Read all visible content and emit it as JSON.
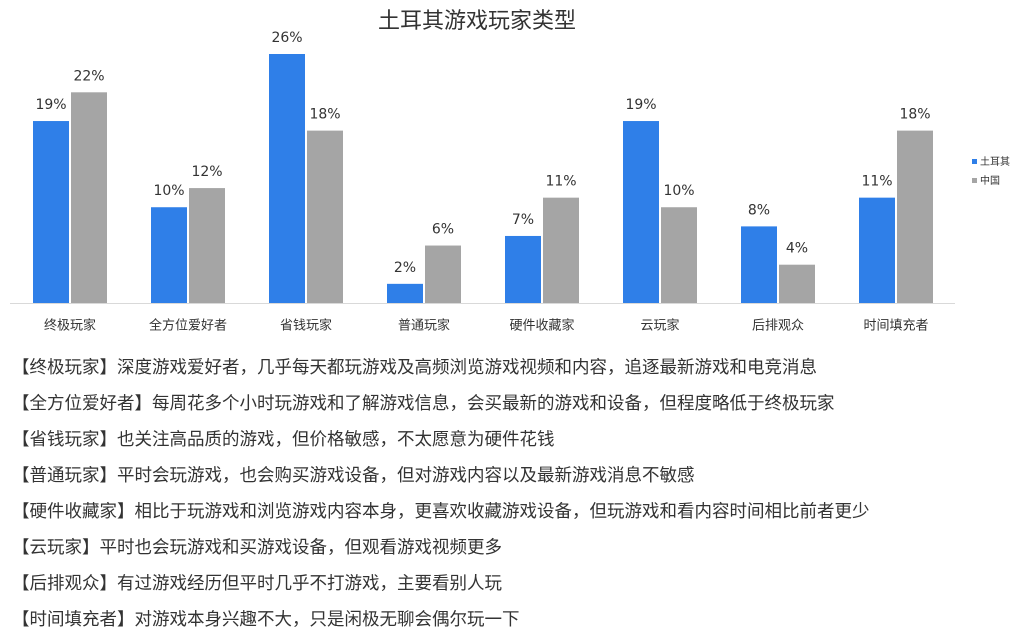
{
  "chart_data": {
    "type": "bar",
    "title": "土耳其游戏玩家类型",
    "categories": [
      "终极玩家",
      "全方位爱好者",
      "省钱玩家",
      "普通玩家",
      "硬件收藏家",
      "云玩家",
      "后排观众",
      "时间填充者"
    ],
    "series": [
      {
        "name": "土耳其",
        "color": "#2f7fe8",
        "values": [
          19,
          10,
          26,
          2,
          7,
          19,
          8,
          11
        ],
        "value_labels": [
          "19%",
          "10%",
          "26%",
          "2%",
          "7%",
          "19%",
          "8%",
          "11%"
        ]
      },
      {
        "name": "中国",
        "color": "#a5a5a5",
        "values": [
          22,
          12,
          18,
          6,
          11,
          10,
          4,
          18
        ],
        "value_labels": [
          "22%",
          "12%",
          "18%",
          "6%",
          "11%",
          "10%",
          "4%",
          "18%"
        ]
      }
    ],
    "legend": "right"
  },
  "notes": [
    "【终极玩家】深度游戏爱好者，几乎每天都玩游戏及高频浏览游戏视频和内容，追逐最新游戏和电竞消息",
    "【全方位爱好者】每周花多个小时玩游戏和了解游戏信息，会买最新的游戏和设备，但程度略低于终极玩家",
    "【省钱玩家】也关注高品质的游戏，但价格敏感，不太愿意为硬件花钱",
    "【普通玩家】平时会玩游戏，也会购买游戏设备，但对游戏内容以及最新游戏消息不敏感",
    "【硬件收藏家】相比于玩游戏和浏览游戏内容本身，更喜欢收藏游戏设备，但玩游戏和看内容时间相比前者更少",
    "【云玩家】平时也会玩游戏和买游戏设备，但观看游戏视频更多",
    "【后排观众】有过游戏经历但平时几乎不打游戏，主要看别人玩",
    "【时间填充者】对游戏本身兴趣不大，只是闲极无聊会偶尔玩一下"
  ]
}
